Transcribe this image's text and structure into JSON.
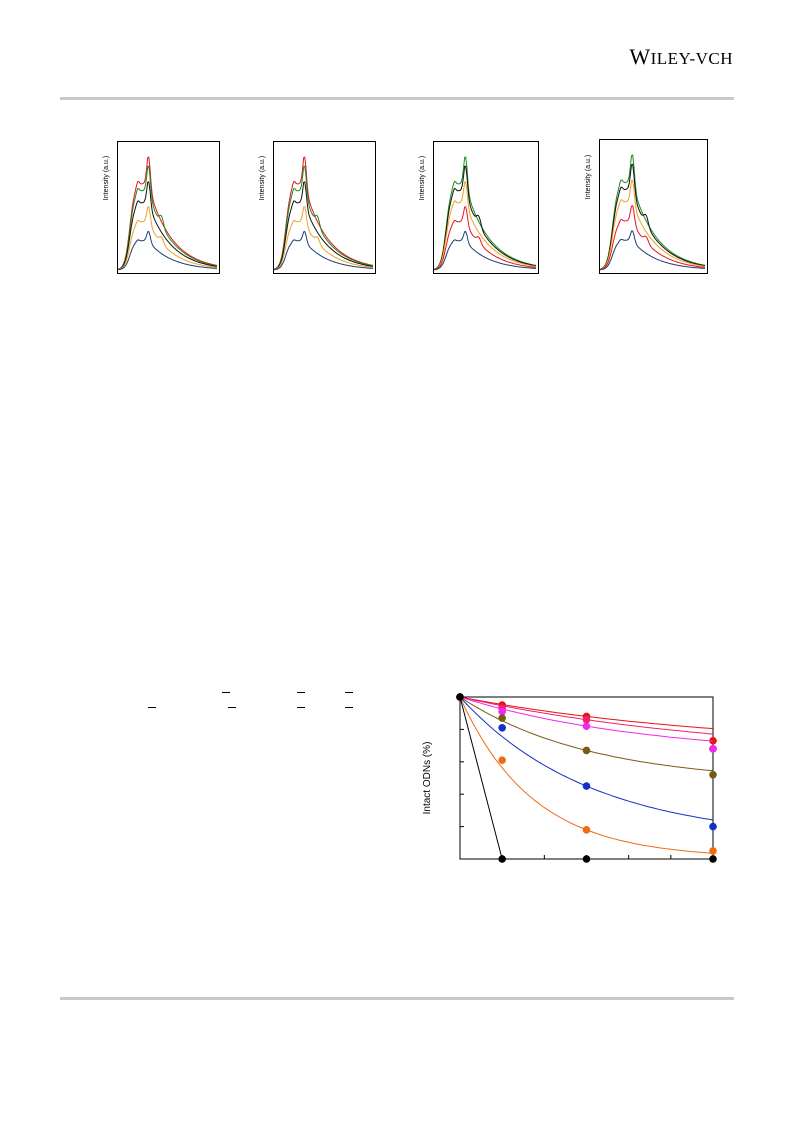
{
  "header": {
    "publisher_first": "W",
    "publisher_rest": "ILEY",
    "publisher_suffix": "-VCH"
  },
  "spectra_panels": [
    {
      "ylabel": "Intensity (a.u.)",
      "traces": [
        "red",
        "green",
        "black",
        "orange",
        "navy"
      ]
    },
    {
      "ylabel": "Intensity (a.u.)",
      "traces": [
        "red",
        "green",
        "black",
        "orange",
        "navy"
      ]
    },
    {
      "ylabel": "Intensity (a.u.)",
      "traces": [
        "green",
        "black",
        "orange",
        "red",
        "navy"
      ]
    },
    {
      "ylabel": "Intensity (a.u.)",
      "traces": [
        "green",
        "black",
        "orange",
        "red",
        "navy"
      ]
    }
  ],
  "colors": {
    "red": "#e8141c",
    "green": "#1e8a1e",
    "black": "#111111",
    "orange": "#f0a020",
    "navy": "#1c3c78",
    "series_red": "#e81010",
    "series_magenta": "#f028f0",
    "series_olive": "#7a5a14",
    "series_blue": "#1430c8",
    "series_orange": "#f06c14",
    "series_black": "#000000",
    "rule": "#c8c8c8"
  },
  "chart_data": {
    "type": "scatter",
    "ylabel": "Intact ODNs (%)",
    "xlabel": "",
    "x": [
      0,
      1,
      3,
      6
    ],
    "xlim": [
      0,
      6
    ],
    "ylim": [
      0,
      100
    ],
    "grid": false,
    "series": [
      {
        "color": "red",
        "values": [
          100,
          95,
          88,
          73
        ]
      },
      {
        "color": "pink",
        "values": [
          100,
          93,
          86,
          68
        ]
      },
      {
        "color": "magenta",
        "values": [
          100,
          91,
          82,
          68
        ]
      },
      {
        "color": "olive",
        "values": [
          100,
          87,
          67,
          52
        ]
      },
      {
        "color": "blue",
        "values": [
          100,
          81,
          45,
          20
        ]
      },
      {
        "color": "orange",
        "values": [
          100,
          61,
          18,
          5
        ]
      },
      {
        "color": "black",
        "values": [
          100,
          0,
          0,
          0
        ]
      }
    ]
  }
}
